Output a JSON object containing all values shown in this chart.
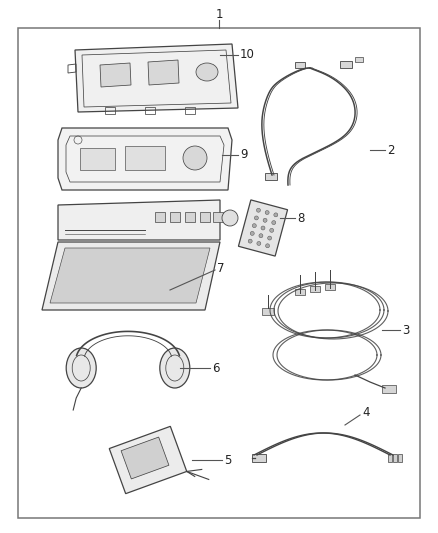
{
  "bg_color": "#ffffff",
  "border_color": "#777777",
  "line_color": "#444444",
  "text_color": "#222222",
  "label_fontsize": 8.5,
  "leader_line_color": "#555555",
  "fig_width": 4.38,
  "fig_height": 5.33,
  "dpi": 100
}
